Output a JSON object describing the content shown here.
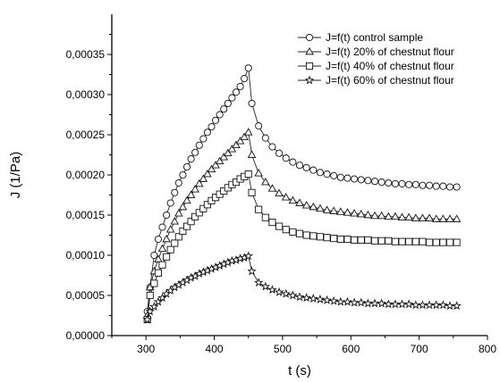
{
  "chart_data": {
    "type": "line",
    "xlabel": "t (s)",
    "ylabel": "J (1/Pa)",
    "xlim": [
      250,
      800
    ],
    "ylim": [
      0,
      0.0004
    ],
    "x_ticks": [
      300,
      400,
      500,
      600,
      700,
      800
    ],
    "x_tick_labels": [
      "300",
      "400",
      "500",
      "600",
      "700",
      "800"
    ],
    "y_ticks": [
      0,
      5e-05,
      0.0001,
      0.00015,
      0.0002,
      0.00025,
      0.0003,
      0.00035
    ],
    "y_tick_labels": [
      "0,00000",
      "0,00005",
      "0,00010",
      "0,00015",
      "0,00020",
      "0,00025",
      "0,00030",
      "0,00035"
    ],
    "legend_position": "top-right",
    "series": [
      {
        "name": "J=f(t) control sample",
        "marker": "circle",
        "x": [
          302,
          306,
          312,
          318,
          324,
          330,
          336,
          342,
          348,
          354,
          360,
          366,
          372,
          378,
          384,
          390,
          396,
          402,
          408,
          414,
          420,
          426,
          432,
          438,
          444,
          450,
          455,
          465,
          475,
          485,
          495,
          505,
          515,
          525,
          535,
          545,
          555,
          565,
          575,
          585,
          595,
          605,
          615,
          625,
          635,
          645,
          655,
          665,
          675,
          685,
          695,
          705,
          715,
          725,
          735,
          745,
          755
        ],
        "y": [
          3e-05,
          6e-05,
          0.0001,
          0.00012,
          0.000135,
          0.00015,
          0.000165,
          0.000178,
          0.00019,
          0.0002,
          0.00021,
          0.00022,
          0.000228,
          0.000237,
          0.000245,
          0.000253,
          0.00026,
          0.000268,
          0.000275,
          0.000282,
          0.000289,
          0.000296,
          0.000303,
          0.00031,
          0.00032,
          0.000333,
          0.000289,
          0.000261,
          0.000246,
          0.000235,
          0.000227,
          0.000221,
          0.000216,
          0.000212,
          0.000209,
          0.000206,
          0.000203,
          0.000201,
          0.000199,
          0.000197,
          0.000196,
          0.000195,
          0.000194,
          0.000193,
          0.000192,
          0.000191,
          0.00019,
          0.000189,
          0.000189,
          0.000188,
          0.000188,
          0.000187,
          0.000187,
          0.000186,
          0.000186,
          0.000185,
          0.000185
        ]
      },
      {
        "name": "J=f(t) 20% of chestnut flour",
        "marker": "triangle",
        "x": [
          302,
          306,
          312,
          318,
          324,
          330,
          336,
          342,
          348,
          354,
          360,
          366,
          372,
          378,
          384,
          390,
          396,
          402,
          408,
          414,
          420,
          426,
          432,
          438,
          444,
          450,
          455,
          465,
          475,
          485,
          495,
          505,
          515,
          525,
          535,
          545,
          555,
          565,
          575,
          585,
          595,
          605,
          615,
          625,
          635,
          645,
          655,
          665,
          675,
          685,
          695,
          705,
          715,
          725,
          735,
          745,
          755
        ],
        "y": [
          2.5e-05,
          6e-05,
          8e-05,
          9.5e-05,
          0.000108,
          0.00012,
          0.000132,
          0.000142,
          0.000152,
          0.00016,
          0.000168,
          0.000175,
          0.000182,
          0.000189,
          0.000195,
          0.000201,
          0.000207,
          0.000212,
          0.000217,
          0.000222,
          0.000227,
          0.000232,
          0.000237,
          0.000242,
          0.000247,
          0.000253,
          0.000225,
          0.000202,
          0.000191,
          0.000183,
          0.000177,
          0.000172,
          0.000168,
          0.000165,
          0.000162,
          0.00016,
          0.000158,
          0.000156,
          0.000155,
          0.000154,
          0.000153,
          0.000152,
          0.000151,
          0.00015,
          0.000149,
          0.000149,
          0.000148,
          0.000148,
          0.000147,
          0.000147,
          0.000146,
          0.000146,
          0.000146,
          0.000145,
          0.000145,
          0.000145,
          0.000145
        ]
      },
      {
        "name": "J=f(t) 40% of chestnut flour",
        "marker": "square",
        "x": [
          302,
          306,
          312,
          318,
          324,
          330,
          336,
          342,
          348,
          354,
          360,
          366,
          372,
          378,
          384,
          390,
          396,
          402,
          408,
          414,
          420,
          426,
          432,
          438,
          444,
          450,
          455,
          465,
          475,
          485,
          495,
          505,
          515,
          525,
          535,
          545,
          555,
          565,
          575,
          585,
          595,
          605,
          615,
          625,
          635,
          645,
          655,
          665,
          675,
          685,
          695,
          705,
          715,
          725,
          735,
          745,
          755
        ],
        "y": [
          2e-05,
          5e-05,
          6.5e-05,
          7.8e-05,
          8.8e-05,
          9.8e-05,
          0.000107,
          0.000115,
          0.000123,
          0.00013,
          0.000136,
          0.000142,
          0.000148,
          0.000153,
          0.000158,
          0.000163,
          0.000168,
          0.000172,
          0.000176,
          0.00018,
          0.000184,
          0.000188,
          0.000191,
          0.000195,
          0.000198,
          0.000201,
          0.000178,
          0.000157,
          0.000147,
          0.000141,
          0.000136,
          0.000132,
          0.000129,
          0.000127,
          0.000125,
          0.000124,
          0.000123,
          0.000122,
          0.000121,
          0.00012,
          0.00012,
          0.000119,
          0.000119,
          0.000119,
          0.000118,
          0.000118,
          0.000118,
          0.000117,
          0.000117,
          0.000117,
          0.000117,
          0.000117,
          0.000116,
          0.000116,
          0.000116,
          0.000116,
          0.000116
        ]
      },
      {
        "name": "J=f(t) 60% of chestnut flour",
        "marker": "star",
        "x": [
          302,
          306,
          312,
          318,
          324,
          330,
          336,
          342,
          348,
          354,
          360,
          366,
          372,
          378,
          384,
          390,
          396,
          402,
          408,
          414,
          420,
          426,
          432,
          438,
          444,
          450,
          455,
          465,
          475,
          485,
          495,
          505,
          515,
          525,
          535,
          545,
          555,
          565,
          575,
          585,
          595,
          605,
          615,
          625,
          635,
          645,
          655,
          665,
          675,
          685,
          695,
          705,
          715,
          725,
          735,
          745,
          755
        ],
        "y": [
          2e-05,
          3e-05,
          3.6e-05,
          4.2e-05,
          4.7e-05,
          5.2e-05,
          5.6e-05,
          6e-05,
          6.3e-05,
          6.6e-05,
          6.9e-05,
          7.2e-05,
          7.4e-05,
          7.7e-05,
          7.9e-05,
          8.1e-05,
          8.3e-05,
          8.5e-05,
          8.7e-05,
          8.9e-05,
          9.1e-05,
          9.3e-05,
          9.4e-05,
          9.6e-05,
          9.7e-05,
          9.9e-05,
          8e-05,
          6.6e-05,
          6.1e-05,
          5.7e-05,
          5.4e-05,
          5.2e-05,
          5e-05,
          4.8e-05,
          4.7e-05,
          4.6e-05,
          4.5e-05,
          4.4e-05,
          4.3e-05,
          4.2e-05,
          4.2e-05,
          4.1e-05,
          4.1e-05,
          4e-05,
          4e-05,
          4e-05,
          3.9e-05,
          3.9e-05,
          3.9e-05,
          3.9e-05,
          3.8e-05,
          3.8e-05,
          3.8e-05,
          3.8e-05,
          3.8e-05,
          3.7e-05,
          3.7e-05
        ]
      }
    ]
  }
}
